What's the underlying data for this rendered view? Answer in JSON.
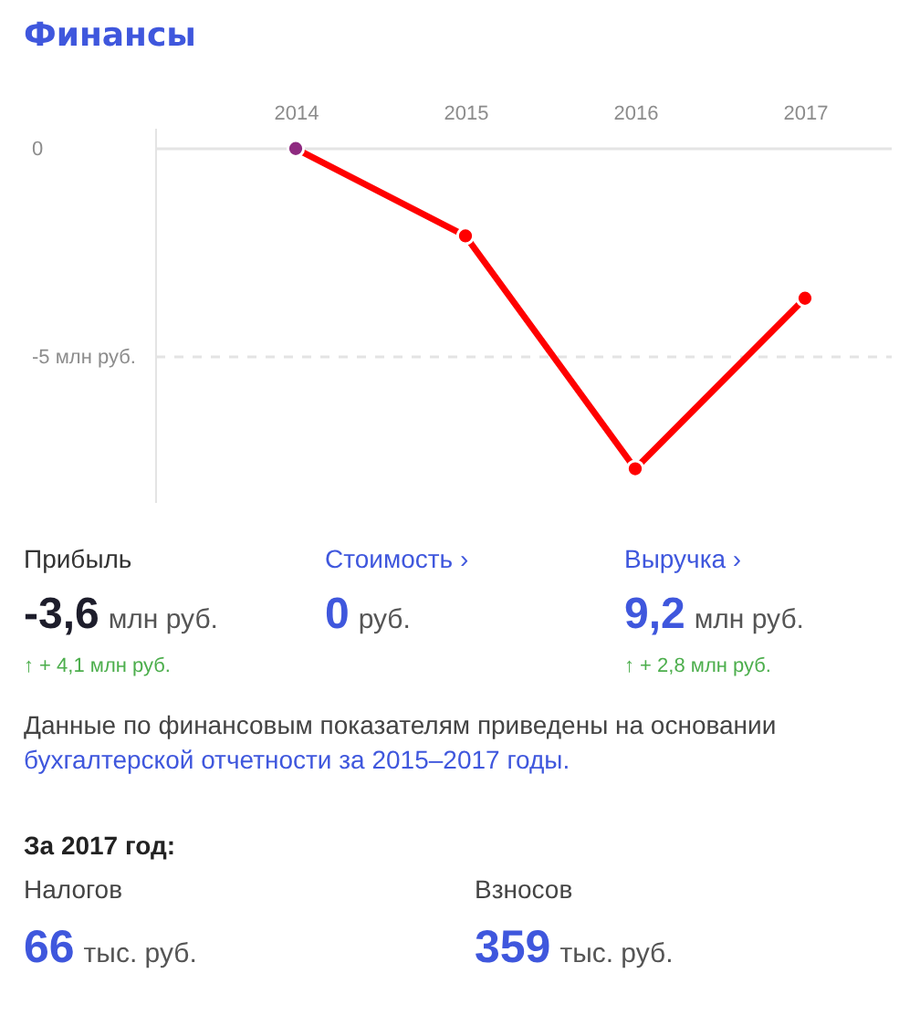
{
  "chart_data": {
    "type": "line",
    "title": "Финансы",
    "categories": [
      "2014",
      "2015",
      "2016",
      "2017"
    ],
    "values": [
      0,
      -2.1,
      -7.7,
      -3.6
    ],
    "color": "#ff0000",
    "colors": [
      "#8e2a80",
      "#ff0000",
      "#ff0000",
      "#ff0000"
    ],
    "ylim": [
      -8.5,
      0.5
    ],
    "yticks": [
      0,
      {
        "value": -5,
        "label": "-5 млн руб."
      }
    ],
    "grid": "y",
    "marker": "circle",
    "line_style": "solid",
    "annotations": [
      "Прибыль",
      "-3,6",
      "млн руб.",
      "↑ + 4,1 млн руб.",
      "Стоимость ›",
      "0",
      "руб.",
      "Выручка ›",
      "9,2",
      "млн руб.",
      "↑ + 2,8 млн руб.",
      "Данные по финансовым показателям приведены на основании",
      "бухгалтерской отчетности за 2015–2017 годы.",
      "За 2017 год:",
      "Налогов",
      "66",
      "тыс. руб.",
      "Взносов",
      "359",
      "тыс. руб."
    ]
  }
}
